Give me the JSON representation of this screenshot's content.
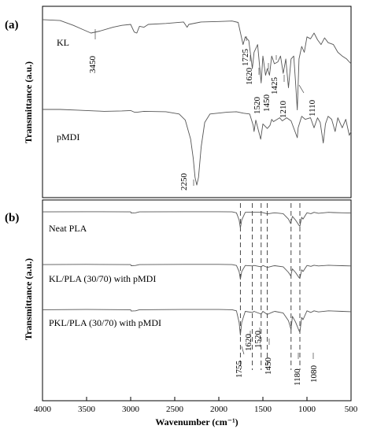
{
  "chart_data": [
    {
      "panel": "(a)",
      "type": "line",
      "ylabel": "Transmittance (a.u.)",
      "xlim": [
        4000,
        500
      ],
      "series": [
        {
          "name": "KL",
          "offset": 0,
          "points": [
            [
              4000,
              0.96
            ],
            [
              3800,
              0.95
            ],
            [
              3650,
              0.9
            ],
            [
              3550,
              0.86
            ],
            [
              3450,
              0.82
            ],
            [
              3350,
              0.84
            ],
            [
              3200,
              0.88
            ],
            [
              3100,
              0.9
            ],
            [
              3000,
              0.91
            ],
            [
              2960,
              0.83
            ],
            [
              2930,
              0.82
            ],
            [
              2900,
              0.89
            ],
            [
              2850,
              0.88
            ],
            [
              2800,
              0.91
            ],
            [
              2600,
              0.92
            ],
            [
              2400,
              0.935
            ],
            [
              2360,
              0.88
            ],
            [
              2340,
              0.91
            ],
            [
              2200,
              0.935
            ],
            [
              2000,
              0.94
            ],
            [
              1850,
              0.945
            ],
            [
              1780,
              0.93
            ],
            [
              1725,
              0.7
            ],
            [
              1700,
              0.78
            ],
            [
              1660,
              0.74
            ],
            [
              1620,
              0.45
            ],
            [
              1600,
              0.62
            ],
            [
              1560,
              0.7
            ],
            [
              1520,
              0.3
            ],
            [
              1500,
              0.58
            ],
            [
              1470,
              0.38
            ],
            [
              1450,
              0.45
            ],
            [
              1425,
              0.38
            ],
            [
              1400,
              0.58
            ],
            [
              1370,
              0.5
            ],
            [
              1330,
              0.52
            ],
            [
              1300,
              0.58
            ],
            [
              1270,
              0.4
            ],
            [
              1240,
              0.55
            ],
            [
              1210,
              0.25
            ],
            [
              1180,
              0.55
            ],
            [
              1150,
              0.58
            ],
            [
              1130,
              0.32
            ],
            [
              1110,
              0.02
            ],
            [
              1090,
              0.55
            ],
            [
              1060,
              0.68
            ],
            [
              1030,
              0.62
            ],
            [
              1000,
              0.78
            ],
            [
              960,
              0.76
            ],
            [
              920,
              0.82
            ],
            [
              880,
              0.75
            ],
            [
              840,
              0.7
            ],
            [
              800,
              0.77
            ],
            [
              760,
              0.72
            ],
            [
              700,
              0.7
            ],
            [
              650,
              0.62
            ],
            [
              600,
              0.58
            ],
            [
              550,
              0.55
            ],
            [
              500,
              0.5
            ]
          ]
        },
        {
          "name": "pMDI",
          "offset": 0,
          "points": [
            [
              4000,
              0.99
            ],
            [
              3800,
              0.99
            ],
            [
              3600,
              0.98
            ],
            [
              3400,
              0.97
            ],
            [
              3300,
              0.965
            ],
            [
              3100,
              0.97
            ],
            [
              3000,
              0.975
            ],
            [
              2960,
              0.955
            ],
            [
              2920,
              0.955
            ],
            [
              2850,
              0.965
            ],
            [
              2600,
              0.96
            ],
            [
              2450,
              0.93
            ],
            [
              2380,
              0.85
            ],
            [
              2320,
              0.6
            ],
            [
              2290,
              0.35
            ],
            [
              2270,
              0.1
            ],
            [
              2250,
              0.0
            ],
            [
              2230,
              0.1
            ],
            [
              2200,
              0.5
            ],
            [
              2160,
              0.82
            ],
            [
              2100,
              0.93
            ],
            [
              1900,
              0.955
            ],
            [
              1800,
              0.96
            ],
            [
              1720,
              0.94
            ],
            [
              1650,
              0.93
            ],
            [
              1610,
              0.78
            ],
            [
              1600,
              0.7
            ],
            [
              1580,
              0.85
            ],
            [
              1525,
              0.6
            ],
            [
              1500,
              0.8
            ],
            [
              1450,
              0.74
            ],
            [
              1420,
              0.78
            ],
            [
              1400,
              0.86
            ],
            [
              1380,
              0.83
            ],
            [
              1310,
              0.88
            ],
            [
              1280,
              0.84
            ],
            [
              1230,
              0.88
            ],
            [
              1180,
              0.84
            ],
            [
              1110,
              0.62
            ],
            [
              1100,
              0.75
            ],
            [
              1060,
              0.9
            ],
            [
              1020,
              0.86
            ],
            [
              960,
              0.88
            ],
            [
              920,
              0.75
            ],
            [
              880,
              0.88
            ],
            [
              850,
              0.82
            ],
            [
              815,
              0.55
            ],
            [
              790,
              0.8
            ],
            [
              760,
              0.9
            ],
            [
              720,
              0.86
            ],
            [
              680,
              0.7
            ],
            [
              650,
              0.88
            ],
            [
              600,
              0.75
            ],
            [
              560,
              0.86
            ],
            [
              520,
              0.65
            ],
            [
              500,
              0.7
            ]
          ]
        }
      ],
      "annotations": [
        "3450",
        "1725",
        "1620",
        "1520",
        "1450",
        "1425",
        "1210",
        "1110",
        "2250"
      ]
    },
    {
      "panel": "(b)",
      "type": "line",
      "xlabel": "Wavenumber (cm⁻¹)",
      "ylabel": "Transmittance (a.u.)",
      "xlim": [
        4000,
        500
      ],
      "xticks": [
        4000,
        3500,
        3000,
        2500,
        2000,
        1500,
        1000,
        500
      ],
      "guides": [
        1755,
        1620,
        1520,
        1450,
        1180,
        1080
      ],
      "series": [
        {
          "name": "Neat PLA",
          "points": [
            [
              4000,
              0.98
            ],
            [
              3500,
              0.985
            ],
            [
              3000,
              0.98
            ],
            [
              2995,
              0.955
            ],
            [
              2945,
              0.96
            ],
            [
              2900,
              0.98
            ],
            [
              2400,
              0.985
            ],
            [
              2000,
              0.985
            ],
            [
              1850,
              0.98
            ],
            [
              1800,
              0.96
            ],
            [
              1770,
              0.8
            ],
            [
              1755,
              0.62
            ],
            [
              1740,
              0.8
            ],
            [
              1700,
              0.97
            ],
            [
              1620,
              0.975
            ],
            [
              1520,
              0.975
            ],
            [
              1455,
              0.94
            ],
            [
              1450,
              0.935
            ],
            [
              1385,
              0.955
            ],
            [
              1365,
              0.96
            ],
            [
              1270,
              0.94
            ],
            [
              1210,
              0.82
            ],
            [
              1185,
              0.72
            ],
            [
              1165,
              0.88
            ],
            [
              1130,
              0.8
            ],
            [
              1090,
              0.68
            ],
            [
              1080,
              0.66
            ],
            [
              1060,
              0.86
            ],
            [
              1045,
              0.82
            ],
            [
              1000,
              0.96
            ],
            [
              955,
              0.94
            ],
            [
              920,
              0.97
            ],
            [
              870,
              0.95
            ],
            [
              755,
              0.97
            ],
            [
              700,
              0.965
            ],
            [
              600,
              0.96
            ],
            [
              500,
              0.955
            ]
          ]
        },
        {
          "name": "KL/PLA (30/70) with pMDI",
          "points": [
            [
              4000,
              0.98
            ],
            [
              3500,
              0.985
            ],
            [
              3000,
              0.98
            ],
            [
              2995,
              0.955
            ],
            [
              2945,
              0.96
            ],
            [
              2900,
              0.98
            ],
            [
              2400,
              0.985
            ],
            [
              2000,
              0.985
            ],
            [
              1850,
              0.98
            ],
            [
              1800,
              0.96
            ],
            [
              1770,
              0.82
            ],
            [
              1755,
              0.64
            ],
            [
              1740,
              0.82
            ],
            [
              1700,
              0.96
            ],
            [
              1620,
              0.95
            ],
            [
              1600,
              0.96
            ],
            [
              1520,
              0.93
            ],
            [
              1500,
              0.96
            ],
            [
              1455,
              0.92
            ],
            [
              1450,
              0.915
            ],
            [
              1385,
              0.95
            ],
            [
              1365,
              0.955
            ],
            [
              1270,
              0.93
            ],
            [
              1210,
              0.8
            ],
            [
              1185,
              0.72
            ],
            [
              1165,
              0.88
            ],
            [
              1130,
              0.8
            ],
            [
              1090,
              0.68
            ],
            [
              1080,
              0.66
            ],
            [
              1060,
              0.86
            ],
            [
              1045,
              0.82
            ],
            [
              1000,
              0.96
            ],
            [
              955,
              0.94
            ],
            [
              920,
              0.965
            ],
            [
              870,
              0.95
            ],
            [
              755,
              0.965
            ],
            [
              700,
              0.96
            ],
            [
              600,
              0.955
            ],
            [
              500,
              0.95
            ]
          ]
        },
        {
          "name": "PKL/PLA (30/70) with pMDI",
          "points": [
            [
              4000,
              0.98
            ],
            [
              3500,
              0.985
            ],
            [
              3000,
              0.98
            ],
            [
              2995,
              0.955
            ],
            [
              2945,
              0.96
            ],
            [
              2900,
              0.98
            ],
            [
              2400,
              0.985
            ],
            [
              2000,
              0.985
            ],
            [
              1850,
              0.98
            ],
            [
              1800,
              0.96
            ],
            [
              1770,
              0.75
            ],
            [
              1755,
              0.52
            ],
            [
              1740,
              0.75
            ],
            [
              1700,
              0.95
            ],
            [
              1620,
              0.93
            ],
            [
              1600,
              0.95
            ],
            [
              1520,
              0.9
            ],
            [
              1500,
              0.95
            ],
            [
              1455,
              0.9
            ],
            [
              1450,
              0.895
            ],
            [
              1385,
              0.94
            ],
            [
              1365,
              0.95
            ],
            [
              1270,
              0.92
            ],
            [
              1210,
              0.78
            ],
            [
              1180,
              0.62
            ],
            [
              1165,
              0.86
            ],
            [
              1130,
              0.76
            ],
            [
              1090,
              0.6
            ],
            [
              1080,
              0.57
            ],
            [
              1060,
              0.84
            ],
            [
              1045,
              0.8
            ],
            [
              1000,
              0.96
            ],
            [
              955,
              0.93
            ],
            [
              920,
              0.96
            ],
            [
              870,
              0.94
            ],
            [
              755,
              0.96
            ],
            [
              700,
              0.955
            ],
            [
              600,
              0.95
            ],
            [
              500,
              0.945
            ]
          ]
        }
      ],
      "annotations": [
        "1755",
        "1620",
        "1520",
        "1450",
        "1180",
        "1080"
      ]
    }
  ]
}
